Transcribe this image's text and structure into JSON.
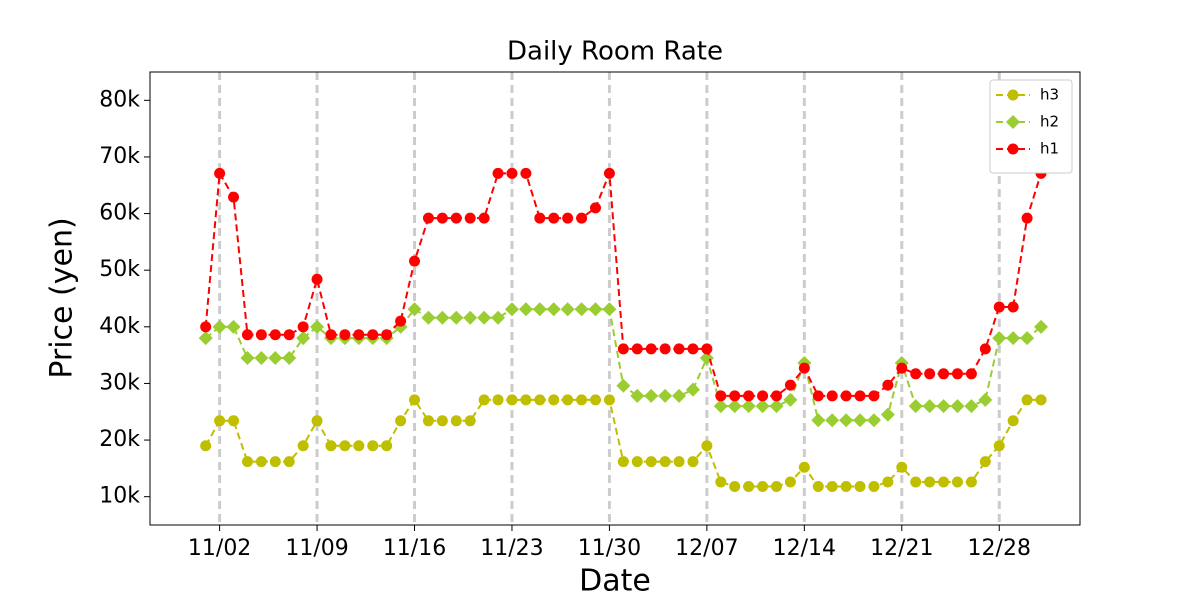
{
  "chart_data": {
    "type": "line",
    "title": "Daily Room Rate",
    "x_label": "Date",
    "y_label": "Price (yen)",
    "x": [
      "11/01",
      "11/02",
      "11/03",
      "11/04",
      "11/05",
      "11/06",
      "11/07",
      "11/08",
      "11/09",
      "11/10",
      "11/11",
      "11/12",
      "11/13",
      "11/14",
      "11/15",
      "11/16",
      "11/17",
      "11/18",
      "11/19",
      "11/20",
      "11/21",
      "11/22",
      "11/23",
      "11/24",
      "11/25",
      "11/26",
      "11/27",
      "11/28",
      "11/29",
      "11/30",
      "12/01",
      "12/02",
      "12/03",
      "12/04",
      "12/05",
      "12/06",
      "12/07",
      "12/08",
      "12/09",
      "12/10",
      "12/11",
      "12/12",
      "12/13",
      "12/14",
      "12/15",
      "12/16",
      "12/17",
      "12/18",
      "12/19",
      "12/20",
      "12/21",
      "12/22",
      "12/23",
      "12/24",
      "12/25",
      "12/26",
      "12/27",
      "12/28",
      "12/29",
      "12/30",
      "12/31"
    ],
    "xticks": [
      "11/02",
      "11/09",
      "11/16",
      "11/23",
      "11/30",
      "12/07",
      "12/14",
      "12/21",
      "12/28"
    ],
    "ylim": [
      5000,
      85000
    ],
    "yticks": [
      {
        "value": 10000,
        "label": "10k"
      },
      {
        "value": 20000,
        "label": "20k"
      },
      {
        "value": 30000,
        "label": "30k"
      },
      {
        "value": 40000,
        "label": "40k"
      },
      {
        "value": 50000,
        "label": "50k"
      },
      {
        "value": 60000,
        "label": "60k"
      },
      {
        "value": 70000,
        "label": "70k"
      },
      {
        "value": 80000,
        "label": "80k"
      }
    ],
    "x_grid": true,
    "legend": "upper right",
    "series": [
      {
        "name": "h3",
        "color": "#bfbf00",
        "marker": "circle",
        "values": [
          19000,
          23400,
          23400,
          16200,
          16200,
          16200,
          16200,
          19000,
          23400,
          19000,
          19000,
          19000,
          19000,
          19000,
          23400,
          27100,
          23400,
          23400,
          23400,
          23400,
          27100,
          27100,
          27100,
          27100,
          27100,
          27100,
          27100,
          27100,
          27100,
          27100,
          16200,
          16200,
          16200,
          16200,
          16200,
          16200,
          19000,
          12600,
          11800,
          11800,
          11800,
          11800,
          12600,
          15200,
          11800,
          11800,
          11800,
          11800,
          11800,
          12600,
          15200,
          12600,
          12600,
          12600,
          12600,
          12600,
          16200,
          19000,
          23400,
          27100,
          27100
        ]
      },
      {
        "name": "h2",
        "color": "#9acd32",
        "marker": "diamond",
        "values": [
          38000,
          40000,
          40000,
          34500,
          34500,
          34500,
          34500,
          38000,
          40000,
          38000,
          38000,
          38000,
          38000,
          38000,
          40000,
          43100,
          41600,
          41600,
          41600,
          41600,
          41600,
          41600,
          43100,
          43100,
          43100,
          43100,
          43100,
          43100,
          43100,
          43100,
          29600,
          27800,
          27800,
          27800,
          27800,
          28900,
          34500,
          26000,
          26000,
          26000,
          26000,
          26000,
          27100,
          33600,
          23500,
          23500,
          23500,
          23500,
          23500,
          24500,
          33600,
          26000,
          26000,
          26000,
          26000,
          26000,
          27100,
          38000,
          38000,
          38000,
          40000
        ]
      },
      {
        "name": "h1",
        "color": "#ff0000",
        "marker": "circle",
        "values": [
          40000,
          67100,
          62900,
          38600,
          38600,
          38600,
          38600,
          40000,
          48400,
          38600,
          38600,
          38600,
          38600,
          38600,
          41000,
          51600,
          59200,
          59200,
          59200,
          59200,
          59200,
          67100,
          67100,
          67100,
          59200,
          59200,
          59200,
          59200,
          61000,
          67100,
          36100,
          36100,
          36100,
          36100,
          36100,
          36100,
          36100,
          27800,
          27800,
          27800,
          27800,
          27800,
          29700,
          32700,
          27800,
          27800,
          27800,
          27800,
          27800,
          29700,
          32700,
          31700,
          31700,
          31700,
          31700,
          31700,
          36100,
          43500,
          43500,
          59200,
          67100
        ]
      }
    ]
  }
}
